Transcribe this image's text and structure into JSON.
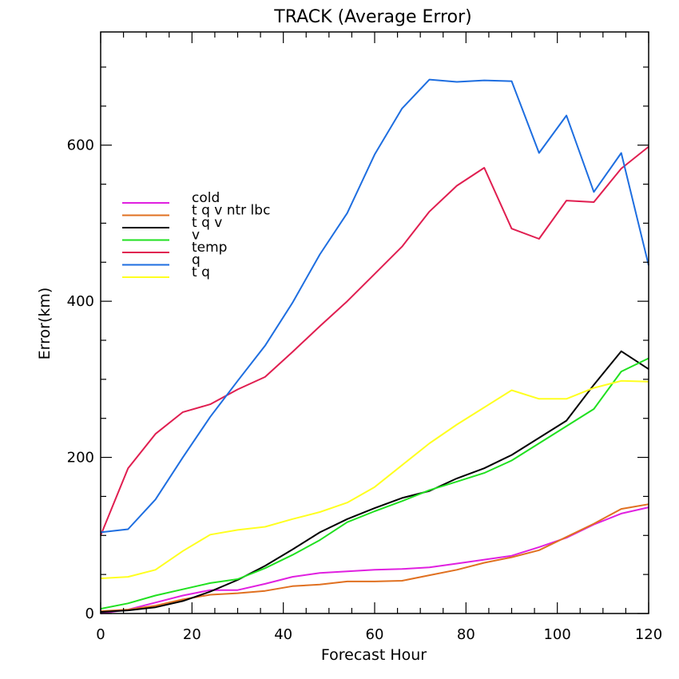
{
  "chart_data": {
    "type": "line",
    "title": "TRACK (Average Error)",
    "xlabel": "Forecast Hour",
    "ylabel": "Error(km)",
    "xlim": [
      0,
      120
    ],
    "ylim": [
      0,
      745
    ],
    "x_ticks": [
      0,
      20,
      40,
      60,
      80,
      100,
      120
    ],
    "y_ticks": [
      0,
      200,
      400,
      600
    ],
    "legend_position": "left",
    "grid": false,
    "x": [
      0,
      6,
      12,
      18,
      24,
      30,
      36,
      42,
      48,
      54,
      60,
      66,
      72,
      78,
      84,
      90,
      96,
      102,
      108,
      114,
      120
    ],
    "series": [
      {
        "name": "cold",
        "color": "#e020e0",
        "values": [
          0,
          5,
          14,
          23,
          30,
          30,
          38,
          47,
          52,
          54,
          56,
          57,
          59,
          64,
          69,
          74,
          85,
          97,
          114,
          128,
          136
        ]
      },
      {
        "name": "t q v ntr lbc",
        "color": "#e07020",
        "values": [
          3,
          5,
          10,
          18,
          24,
          26,
          29,
          35,
          37,
          41,
          41,
          42,
          49,
          56,
          65,
          72,
          81,
          98,
          115,
          134,
          140
        ]
      },
      {
        "name": "t q v",
        "color": "#000000",
        "values": [
          2,
          4,
          8,
          16,
          28,
          43,
          61,
          82,
          104,
          121,
          135,
          148,
          157,
          173,
          186,
          203,
          225,
          247,
          293,
          336,
          313
        ]
      },
      {
        "name": "v",
        "color": "#20e020",
        "values": [
          6,
          13,
          23,
          31,
          39,
          44,
          58,
          75,
          94,
          117,
          131,
          144,
          158,
          169,
          180,
          196,
          218,
          240,
          262,
          310,
          327
        ]
      },
      {
        "name": "temp",
        "color": "#e01e50",
        "values": [
          100,
          186,
          230,
          258,
          268,
          287,
          303,
          335,
          368,
          400,
          435,
          470,
          515,
          548,
          571,
          493,
          480,
          529,
          527,
          570,
          598
        ]
      },
      {
        "name": "q",
        "color": "#1e6ee0",
        "values": [
          104,
          108,
          146,
          200,
          252,
          298,
          343,
          398,
          460,
          513,
          588,
          647,
          684,
          681,
          683,
          682,
          590,
          638,
          540,
          590,
          446
        ]
      },
      {
        "name": "t q",
        "color": "#ffff20",
        "values": [
          45,
          47,
          56,
          80,
          101,
          107,
          111,
          121,
          130,
          142,
          162,
          190,
          218,
          242,
          264,
          286,
          275,
          275,
          289,
          298,
          297
        ]
      }
    ]
  }
}
